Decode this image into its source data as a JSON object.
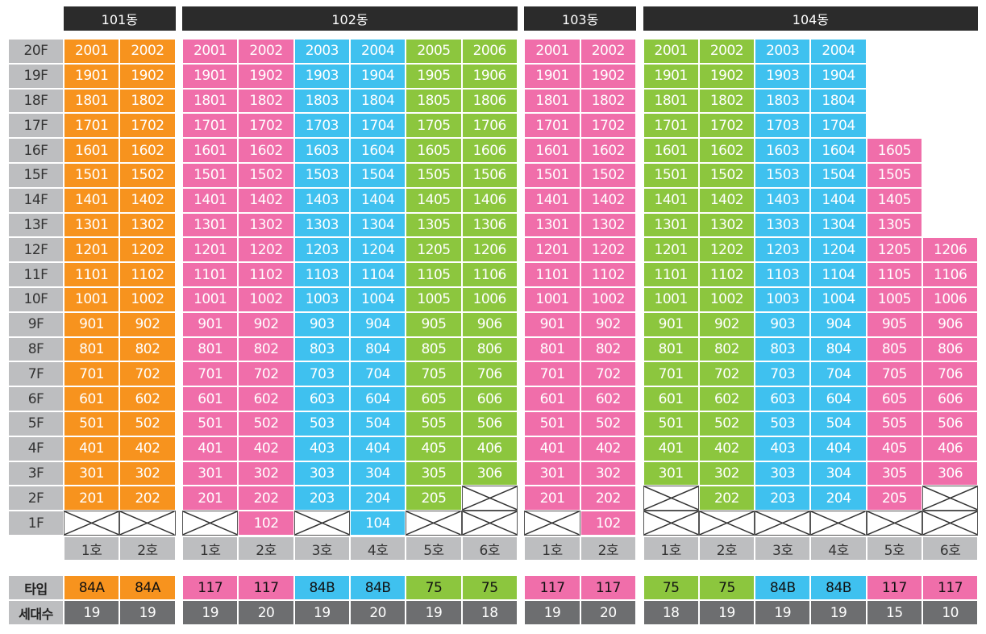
{
  "colors": {
    "orange": "#f7931e",
    "pink": "#f06eaa",
    "blue": "#3fc1ef",
    "green": "#8cc63e",
    "header": "#2b2b2b",
    "gray": "#bdbec0",
    "dark_gray": "#6d6e70"
  },
  "labels": {
    "type_row": "타입",
    "count_row": "세대수"
  },
  "floors": [
    "20F",
    "19F",
    "18F",
    "17F",
    "16F",
    "15F",
    "14F",
    "13F",
    "12F",
    "11F",
    "10F",
    "9F",
    "8F",
    "7F",
    "6F",
    "5F",
    "4F",
    "3F",
    "2F",
    "1F"
  ],
  "buildings": [
    {
      "name": "101동",
      "units": [
        {
          "ho": "1호",
          "type": "84A",
          "count": "19",
          "color": "orange",
          "top_floor": 20,
          "missing": [
            1
          ]
        },
        {
          "ho": "2호",
          "type": "84A",
          "count": "19",
          "color": "orange",
          "top_floor": 20,
          "missing": [
            1
          ]
        }
      ]
    },
    {
      "name": "102동",
      "units": [
        {
          "ho": "1호",
          "type": "117",
          "count": "19",
          "color": "pink",
          "top_floor": 20,
          "missing": [
            1
          ]
        },
        {
          "ho": "2호",
          "type": "117",
          "count": "20",
          "color": "pink",
          "top_floor": 20,
          "missing": []
        },
        {
          "ho": "3호",
          "type": "84B",
          "count": "19",
          "color": "blue",
          "top_floor": 20,
          "missing": [
            1
          ]
        },
        {
          "ho": "4호",
          "type": "84B",
          "count": "20",
          "color": "blue",
          "top_floor": 20,
          "missing": []
        },
        {
          "ho": "5호",
          "type": "75",
          "count": "19",
          "color": "green",
          "top_floor": 20,
          "missing": [
            1
          ]
        },
        {
          "ho": "6호",
          "type": "75",
          "count": "18",
          "color": "green",
          "top_floor": 20,
          "missing": [
            1,
            2
          ]
        }
      ]
    },
    {
      "name": "103동",
      "units": [
        {
          "ho": "1호",
          "type": "117",
          "count": "19",
          "color": "pink",
          "top_floor": 20,
          "missing": [
            1
          ]
        },
        {
          "ho": "2호",
          "type": "117",
          "count": "20",
          "color": "pink",
          "top_floor": 20,
          "missing": []
        }
      ]
    },
    {
      "name": "104동",
      "units": [
        {
          "ho": "1호",
          "type": "75",
          "count": "18",
          "color": "green",
          "top_floor": 20,
          "missing": [
            1,
            2
          ]
        },
        {
          "ho": "2호",
          "type": "75",
          "count": "19",
          "color": "green",
          "top_floor": 20,
          "missing": [
            1
          ]
        },
        {
          "ho": "3호",
          "type": "84B",
          "count": "19",
          "color": "blue",
          "top_floor": 20,
          "missing": [
            1
          ]
        },
        {
          "ho": "4호",
          "type": "84B",
          "count": "19",
          "color": "blue",
          "top_floor": 20,
          "missing": [
            1
          ]
        },
        {
          "ho": "5호",
          "type": "117",
          "count": "15",
          "color": "pink",
          "top_floor": 16,
          "missing": [
            1
          ]
        },
        {
          "ho": "6호",
          "type": "117",
          "count": "10",
          "color": "pink",
          "top_floor": 12,
          "missing": [
            1,
            2
          ]
        }
      ]
    }
  ]
}
